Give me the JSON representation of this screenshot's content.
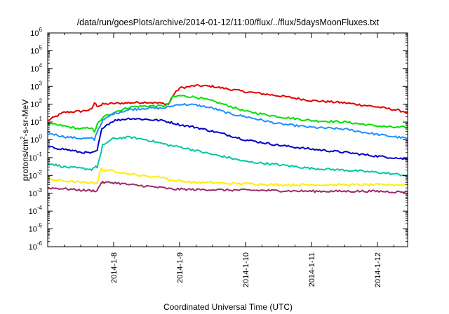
{
  "chart_data": {
    "type": "line",
    "title": "/data/run/goesPlots/archive/2014-01-12/11:00/flux/../flux/5daysMoonFluxes.txt",
    "xlabel": "Coordinated Universal Time (UTC)",
    "ylabel": {
      "before": "protons/cm",
      "sup": "2",
      "after": "-s-sr-MeV"
    },
    "yscale": "log",
    "ylim": [
      1e-06,
      1000000.0
    ],
    "y_ticks": [
      {
        "exp": "-6"
      },
      {
        "exp": "-5"
      },
      {
        "exp": "-4"
      },
      {
        "exp": "-3"
      },
      {
        "exp": "-2"
      },
      {
        "exp": "-1"
      },
      {
        "exp": "0"
      },
      {
        "exp": "1"
      },
      {
        "exp": "2"
      },
      {
        "exp": "3"
      },
      {
        "exp": "4"
      },
      {
        "exp": "5"
      },
      {
        "exp": "6"
      }
    ],
    "y_tick_base": "10",
    "xlim": [
      "2014-01-07T00:00",
      "2014-01-12T11:00"
    ],
    "x_ticks": [
      "2014-1-8",
      "2014-1-9",
      "2014-1-10",
      "2014-1-11",
      "2014-1-12"
    ],
    "grid": false,
    "legend": "none",
    "x": [
      "2014-01-07T00:00",
      "2014-01-07T06:00",
      "2014-01-07T12:00",
      "2014-01-07T16:00",
      "2014-01-07T17:00",
      "2014-01-07T18:00",
      "2014-01-07T19:30",
      "2014-01-07T20:00",
      "2014-01-08T00:00",
      "2014-01-08T06:00",
      "2014-01-08T12:00",
      "2014-01-08T18:00",
      "2014-01-08T20:00",
      "2014-01-08T21:30",
      "2014-01-09T00:00",
      "2014-01-09T06:00",
      "2014-01-09T12:00",
      "2014-01-09T18:00",
      "2014-01-10T00:00",
      "2014-01-10T12:00",
      "2014-01-11T00:00",
      "2014-01-11T12:00",
      "2014-01-12T00:00",
      "2014-01-12T06:00",
      "2014-01-12T11:00"
    ],
    "series": [
      {
        "color": "#e00000",
        "values": [
          12,
          35,
          40,
          50,
          120,
          80,
          90,
          100,
          110,
          120,
          130,
          110,
          100,
          300,
          800,
          1100,
          1000,
          700,
          500,
          300,
          160,
          120,
          70,
          50,
          35
        ]
      },
      {
        "color": "#00e000",
        "values": [
          8,
          6,
          4,
          5,
          2.5,
          8,
          12,
          18,
          35,
          70,
          80,
          80,
          100,
          250,
          300,
          250,
          150,
          80,
          40,
          20,
          12,
          10,
          6,
          5,
          5
        ]
      },
      {
        "color": "#1e90ff",
        "values": [
          2.5,
          1.5,
          1.2,
          1.2,
          1,
          3,
          8,
          12,
          30,
          50,
          60,
          60,
          70,
          80,
          100,
          90,
          60,
          30,
          20,
          8,
          5,
          4,
          2,
          1.5,
          1.2
        ]
      },
      {
        "color": "#0000cc",
        "values": [
          0.4,
          0.3,
          0.2,
          0.18,
          0.2,
          0.25,
          3,
          5,
          12,
          16,
          14,
          12,
          10,
          9,
          7,
          5,
          3,
          1.8,
          1.0,
          0.5,
          0.3,
          0.2,
          0.12,
          0.1,
          0.08
        ]
      },
      {
        "color": "#00c8a0",
        "values": [
          0.05,
          0.03,
          0.025,
          0.022,
          0.03,
          0.03,
          0.2,
          0.5,
          1.2,
          1.4,
          1.0,
          0.6,
          0.5,
          0.45,
          0.4,
          0.25,
          0.15,
          0.1,
          0.06,
          0.04,
          0.025,
          0.02,
          0.015,
          0.012,
          0.01
        ]
      },
      {
        "color": "#ffee00",
        "values": [
          0.006,
          0.005,
          0.004,
          0.004,
          0.004,
          0.004,
          0.025,
          0.02,
          0.018,
          0.012,
          0.009,
          0.008,
          0.006,
          0.005,
          0.005,
          0.004,
          0.004,
          0.0035,
          0.0035,
          0.003,
          0.003,
          0.003,
          0.003,
          0.003,
          0.003
        ]
      },
      {
        "color": "#9b2a6a",
        "values": [
          0.002,
          0.0018,
          0.0015,
          0.0014,
          0.0014,
          0.0014,
          0.004,
          0.004,
          0.004,
          0.003,
          0.0025,
          0.002,
          0.0018,
          0.0017,
          0.0017,
          0.0016,
          0.0016,
          0.0015,
          0.0015,
          0.0014,
          0.0013,
          0.0013,
          0.0013,
          0.0012,
          0.0012
        ]
      }
    ]
  }
}
